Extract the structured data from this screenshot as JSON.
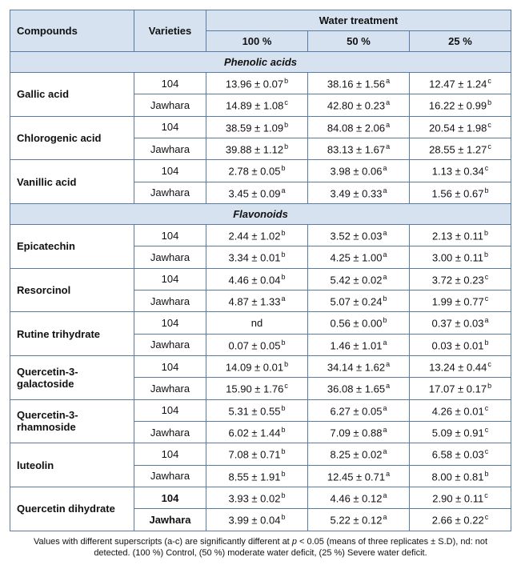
{
  "colors": {
    "header_bg": "#d6e2f0",
    "border": "#5a7ba3",
    "text": "#111111"
  },
  "header": {
    "compounds": "Compounds",
    "varieties": "Varieties",
    "water_treatment": "Water treatment",
    "p100": "100 %",
    "p50": "50 %",
    "p25": "25 %"
  },
  "groups": [
    {
      "title": "Phenolic acids",
      "rows": [
        {
          "compound": "Gallic acid",
          "bold": false,
          "lines": [
            {
              "variety": "104",
              "v100": "13.96 ± 0.07",
              "s100": "b",
              "v50": "38.16 ± 1.56",
              "s50": "a",
              "v25": "12.47 ± 1.24",
              "s25": "c"
            },
            {
              "variety": "Jawhara",
              "v100": "14.89 ± 1.08",
              "s100": "c",
              "v50": "42.80 ± 0.23",
              "s50": "a",
              "v25": "16.22 ± 0.99",
              "s25": "b"
            }
          ]
        },
        {
          "compound": "Chlorogenic acid",
          "bold": false,
          "lines": [
            {
              "variety": "104",
              "v100": "38.59 ± 1.09",
              "s100": "b",
              "v50": "84.08 ± 2.06",
              "s50": "a",
              "v25": "20.54 ± 1.98",
              "s25": "c"
            },
            {
              "variety": "Jawhara",
              "v100": "39.88 ± 1.12",
              "s100": "b",
              "v50": "83.13 ± 1.67",
              "s50": "a",
              "v25": "28.55 ± 1.27",
              "s25": "c"
            }
          ]
        },
        {
          "compound": "Vanillic acid",
          "bold": false,
          "lines": [
            {
              "variety": "104",
              "v100": "2.78 ± 0.05",
              "s100": "b",
              "v50": "3.98 ± 0.06",
              "s50": "a",
              "v25": "1.13 ± 0.34",
              "s25": "c"
            },
            {
              "variety": "Jawhara",
              "v100": "3.45 ± 0.09",
              "s100": "a",
              "v50": "3.49 ± 0.33",
              "s50": "a",
              "v25": "1.56 ± 0.67",
              "s25": "b"
            }
          ]
        }
      ]
    },
    {
      "title": "Flavonoids",
      "rows": [
        {
          "compound": "Epicatechin",
          "bold": false,
          "lines": [
            {
              "variety": "104",
              "v100": "2.44 ± 1.02",
              "s100": "b",
              "v50": "3.52 ± 0.03",
              "s50": "a",
              "v25": "2.13 ± 0.11",
              "s25": "b"
            },
            {
              "variety": "Jawhara",
              "v100": "3.34 ± 0.01",
              "s100": "b",
              "v50": "4.25 ± 1.00",
              "s50": "a",
              "v25": "3.00 ± 0.11",
              "s25": "b"
            }
          ]
        },
        {
          "compound": "Resorcinol",
          "bold": false,
          "lines": [
            {
              "variety": "104",
              "v100": "4.46 ± 0.04",
              "s100": "b",
              "v50": "5.42 ± 0.02",
              "s50": "a",
              "v25": "3.72 ± 0.23",
              "s25": "c"
            },
            {
              "variety": "Jawhara",
              "v100": "4.87 ± 1.33",
              "s100": "a",
              "v50": "5.07 ± 0.24",
              "s50": "b",
              "v25": "1.99 ± 0.77",
              "s25": "c"
            }
          ]
        },
        {
          "compound": "Rutine trihydrate",
          "bold": false,
          "lines": [
            {
              "variety": "104",
              "v100": "nd",
              "s100": "",
              "v50": "0.56 ± 0.00",
              "s50": "b",
              "v25": "0.37 ± 0.03",
              "s25": "a"
            },
            {
              "variety": "Jawhara",
              "v100": "0.07 ± 0.05",
              "s100": "b",
              "v50": "1.46 ± 1.01",
              "s50": "a",
              "v25": "0.03 ± 0.01",
              "s25": "b"
            }
          ]
        },
        {
          "compound": "Quercetin-3-galactoside",
          "bold": false,
          "lines": [
            {
              "variety": "104",
              "v100": "14.09 ± 0.01",
              "s100": "b",
              "v50": "34.14 ± 1.62",
              "s50": "a",
              "v25": "13.24 ± 0.44",
              "s25": "c"
            },
            {
              "variety": "Jawhara",
              "v100": "15.90 ± 1.76",
              "s100": "c",
              "v50": "36.08 ± 1.65",
              "s50": "a",
              "v25": "17.07 ± 0.17",
              "s25": "b"
            }
          ]
        },
        {
          "compound": "Quercetin-3-rhamnoside",
          "bold": false,
          "lines": [
            {
              "variety": "104",
              "v100": "5.31 ± 0.55",
              "s100": "b",
              "v50": "6.27 ± 0.05",
              "s50": "a",
              "v25": "4.26 ± 0.01",
              "s25": "c"
            },
            {
              "variety": "Jawhara",
              "v100": "6.02 ± 1.44",
              "s100": "b",
              "v50": "7.09 ± 0.88",
              "s50": "a",
              "v25": "5.09 ± 0.91",
              "s25": "c"
            }
          ]
        },
        {
          "compound": "luteolin",
          "bold": false,
          "lines": [
            {
              "variety": "104",
              "v100": "7.08 ± 0.71",
              "s100": "b",
              "v50": "8.25 ± 0.02",
              "s50": "a",
              "v25": "6.58 ± 0.03",
              "s25": "c"
            },
            {
              "variety": "Jawhara",
              "v100": "8.55 ± 1.91",
              "s100": "b",
              "v50": "12.45 ± 0.71",
              "s50": "a",
              "v25": "8.00 ± 0.81",
              "s25": "b"
            }
          ]
        },
        {
          "compound": "Quercetin dihydrate",
          "bold": true,
          "lines": [
            {
              "variety": "104",
              "v100": "3.93 ± 0.02",
              "s100": "b",
              "v50": "4.46 ± 0.12",
              "s50": "a",
              "v25": "2.90 ± 0.11",
              "s25": "c"
            },
            {
              "variety": "Jawhara",
              "v100": "3.99 ± 0.04",
              "s100": "b",
              "v50": "5.22 ± 0.12",
              "s50": "a",
              "v25": "2.66 ± 0.22",
              "s25": "c"
            }
          ]
        }
      ]
    }
  ],
  "footnote_parts": {
    "a": "Values with different superscripts (a-c) are significantly different at ",
    "p": "p",
    "b": " < 0.05 (means of three replicates ± S.D), nd: not detected. (100 %) Control, (50 %) moderate water deficit, (25 %) Severe water deficit."
  }
}
